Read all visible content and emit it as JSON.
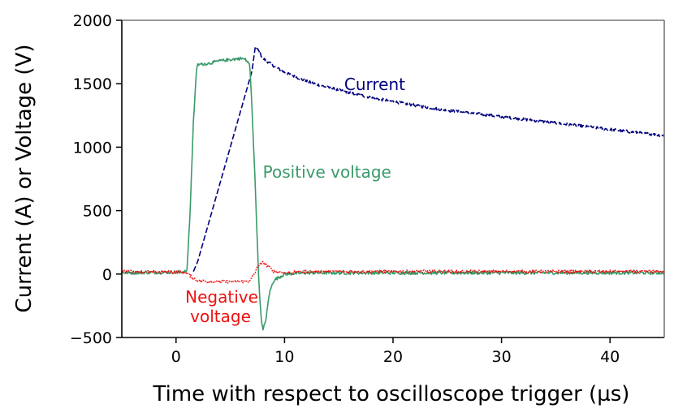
{
  "chart_data": {
    "type": "line",
    "xlabel": "Time with respect to oscilloscope trigger (µs)",
    "ylabel": "Current (A) or Voltage (V)",
    "xlim": [
      -5,
      45
    ],
    "ylim": [
      -500,
      2000
    ],
    "xticks": [
      0,
      10,
      20,
      30,
      40
    ],
    "xtick_labels": [
      "0",
      "10",
      "20",
      "30",
      "40"
    ],
    "yticks": [
      -500,
      0,
      500,
      1000,
      1500,
      2000
    ],
    "ytick_labels": [
      "−500",
      "0",
      "500",
      "1000",
      "1500",
      "2000"
    ],
    "grid": false,
    "series": [
      {
        "name": "Current",
        "color": "#00007f",
        "style": "dashed",
        "x": [
          -5,
          0,
          1.5,
          2,
          3,
          4,
          5,
          6,
          7,
          7.3,
          7.6,
          8,
          9,
          10,
          12,
          14,
          16,
          18,
          20,
          22,
          25,
          28,
          30,
          33,
          35,
          38,
          40,
          42,
          45
        ],
        "y": [
          0,
          0,
          0,
          100,
          400,
          700,
          1000,
          1300,
          1600,
          1790,
          1760,
          1700,
          1640,
          1590,
          1520,
          1470,
          1430,
          1390,
          1360,
          1330,
          1290,
          1260,
          1240,
          1210,
          1190,
          1160,
          1140,
          1120,
          1090
        ]
      },
      {
        "name": "Positive voltage",
        "color": "#3a9a6a",
        "style": "solid",
        "x": [
          -5,
          0,
          1,
          1.3,
          1.6,
          1.9,
          2,
          3,
          4,
          5,
          6,
          6.4,
          6.8,
          7,
          7.3,
          7.6,
          7.8,
          8,
          8.3,
          8.6,
          9,
          10,
          12,
          45
        ],
        "y": [
          10,
          15,
          20,
          500,
          1200,
          1620,
          1650,
          1660,
          1680,
          1690,
          1700,
          1690,
          1650,
          1300,
          700,
          0,
          -300,
          -450,
          -350,
          -150,
          -50,
          0,
          10,
          10
        ]
      },
      {
        "name": "Negative voltage",
        "color": "#ee1111",
        "style": "dotted",
        "x": [
          -5,
          0,
          1,
          1.5,
          2,
          3,
          4,
          5,
          6,
          6.8,
          7.2,
          7.6,
          8,
          8.5,
          9,
          10,
          12,
          45
        ],
        "y": [
          20,
          15,
          10,
          -30,
          -50,
          -60,
          -60,
          -60,
          -60,
          -55,
          0,
          70,
          90,
          60,
          20,
          10,
          20,
          20
        ]
      }
    ],
    "annotations": [
      {
        "text": "Current",
        "color": "#00007f",
        "x": 15.5,
        "y": 1500
      },
      {
        "text": "Positive voltage",
        "color": "#3a9a6a",
        "x": 8,
        "y": 810
      },
      {
        "lines": [
          "Negative",
          "voltage"
        ],
        "color": "#ee1111",
        "x": 1.3,
        "y": -175
      }
    ]
  }
}
